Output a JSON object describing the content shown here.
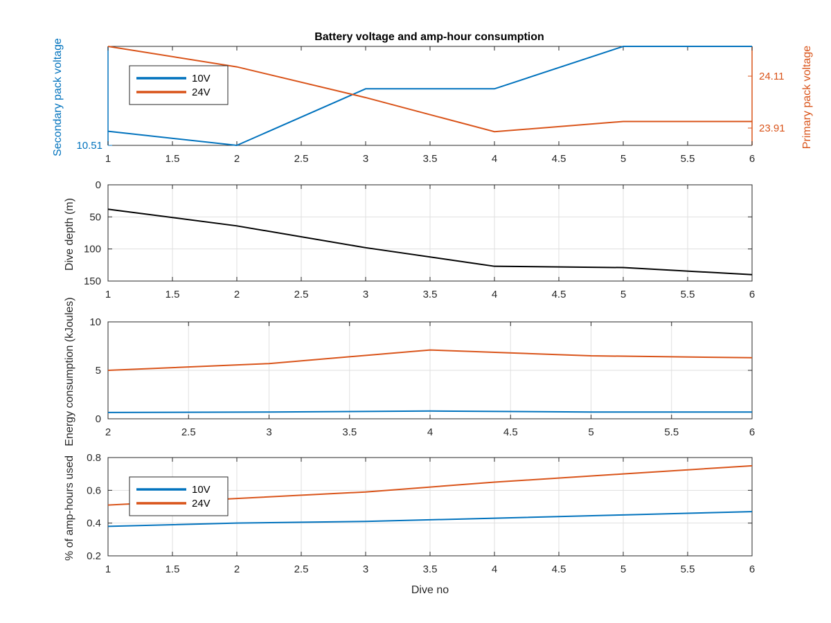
{
  "figure_title": "Battery voltage and amp-hour consumption",
  "chart_data": [
    {
      "type": "line",
      "id": "voltage",
      "title": "Battery voltage and amp-hour consumption",
      "xlabel": "",
      "ylabel_left": "Secondary pack voltage",
      "ylabel_right": "Primary pack voltage",
      "xlim": [
        1,
        6
      ],
      "xticks": [
        "1",
        "1.5",
        "2",
        "2.5",
        "3",
        "3.5",
        "4",
        "4.5",
        "5",
        "5.5",
        "6"
      ],
      "yticks_left": [
        "10.51"
      ],
      "yticks_right": [
        "24.11",
        "23.91"
      ],
      "ylim_left": [
        10.51,
        10.58
      ],
      "ylim_right": [
        23.87,
        24.16
      ],
      "grid": false,
      "legend": {
        "placement": "top-left",
        "entries": [
          "10V",
          "24V"
        ]
      },
      "series": [
        {
          "name": "10V",
          "axis": "left",
          "color": "#0072bd",
          "x": [
            1,
            2,
            3,
            4,
            5,
            6
          ],
          "values": [
            10.52,
            10.51,
            10.55,
            10.55,
            10.58,
            10.58
          ]
        },
        {
          "name": "24V",
          "axis": "right",
          "color": "#d95319",
          "x": [
            1,
            2,
            3,
            4,
            5,
            6
          ],
          "values": [
            24.16,
            24.1,
            24.01,
            23.91,
            23.94,
            23.94
          ]
        }
      ]
    },
    {
      "type": "line",
      "id": "depth",
      "xlabel": "",
      "ylabel": "Dive depth (m)",
      "xlim": [
        1,
        6
      ],
      "ylim": [
        0,
        150
      ],
      "y_reversed": true,
      "xticks": [
        "1",
        "1.5",
        "2",
        "2.5",
        "3",
        "3.5",
        "4",
        "4.5",
        "5",
        "5.5",
        "6"
      ],
      "yticks": [
        "0",
        "50",
        "100",
        "150"
      ],
      "grid": true,
      "series": [
        {
          "color": "#000000",
          "x": [
            1,
            2,
            3,
            4,
            5,
            6
          ],
          "values": [
            38,
            64,
            98,
            127,
            129,
            140
          ]
        }
      ]
    },
    {
      "type": "line",
      "id": "energy",
      "xlabel": "",
      "ylabel": "Energy consumption (kJoules)",
      "xlim": [
        2,
        6
      ],
      "ylim": [
        0,
        10
      ],
      "xticks": [
        "2",
        "2.5",
        "3",
        "3.5",
        "4",
        "4.5",
        "5",
        "5.5",
        "6"
      ],
      "yticks": [
        "0",
        "5",
        "10"
      ],
      "grid": true,
      "series": [
        {
          "color": "#d95319",
          "x": [
            2,
            3,
            4,
            5,
            6
          ],
          "values": [
            5.0,
            5.7,
            7.1,
            6.5,
            6.3
          ]
        },
        {
          "color": "#0072bd",
          "x": [
            2,
            3,
            4,
            5,
            6
          ],
          "values": [
            0.65,
            0.7,
            0.8,
            0.7,
            0.7
          ]
        }
      ]
    },
    {
      "type": "line",
      "id": "amphours",
      "xlabel": "Dive no",
      "ylabel": "% of amp-hours used",
      "xlim": [
        1,
        6
      ],
      "ylim": [
        0.2,
        0.8
      ],
      "xticks": [
        "1",
        "1.5",
        "2",
        "2.5",
        "3",
        "3.5",
        "4",
        "4.5",
        "5",
        "5.5",
        "6"
      ],
      "yticks": [
        "0.2",
        "0.4",
        "0.6",
        "0.8"
      ],
      "grid": true,
      "legend": {
        "placement": "bottom-left",
        "entries": [
          "10V",
          "24V"
        ]
      },
      "series": [
        {
          "name": "10V",
          "color": "#0072bd",
          "x": [
            1,
            2,
            3,
            4,
            5,
            6
          ],
          "values": [
            0.38,
            0.4,
            0.41,
            0.43,
            0.45,
            0.47
          ]
        },
        {
          "name": "24V",
          "color": "#d95319",
          "x": [
            1,
            2,
            3,
            4,
            5,
            6
          ],
          "values": [
            0.51,
            0.55,
            0.59,
            0.65,
            0.7,
            0.75
          ]
        }
      ]
    }
  ]
}
